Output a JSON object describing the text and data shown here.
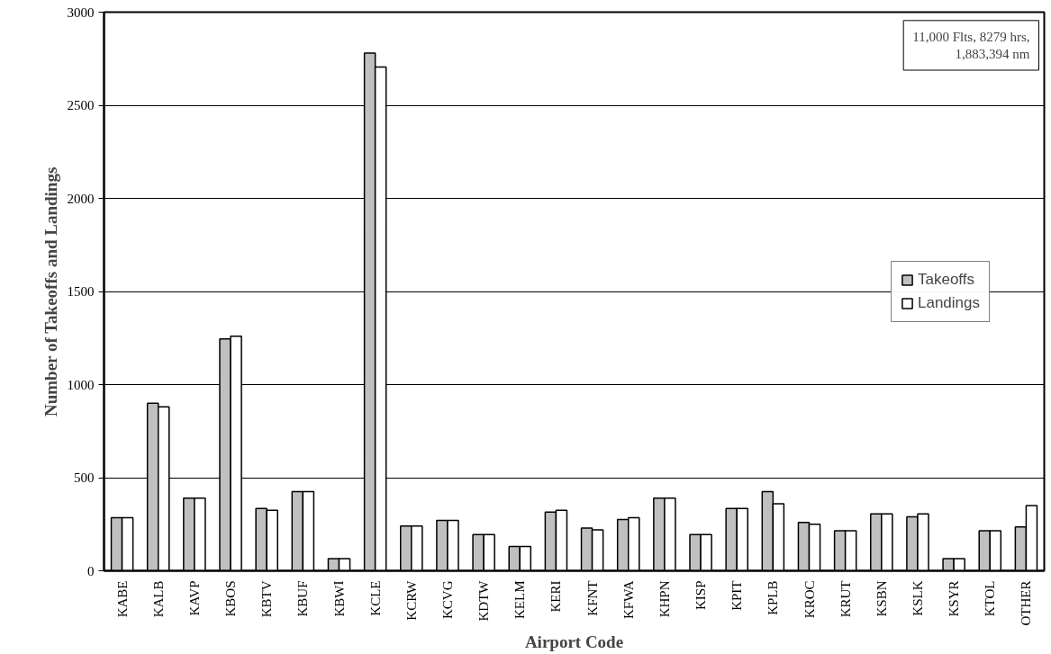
{
  "chart_data": {
    "type": "bar",
    "xlabel": "Airport Code",
    "ylabel": "Number of Takeoffs and Landings",
    "categories": [
      "KABE",
      "KALB",
      "KAVP",
      "KBOS",
      "KBTV",
      "KBUF",
      "KBWI",
      "KCLE",
      "KCRW",
      "KCVG",
      "KDTW",
      "KELM",
      "KERI",
      "KFNT",
      "KFWA",
      "KHPN",
      "KISP",
      "KPIT",
      "KPLB",
      "KROC",
      "KRUT",
      "KSBN",
      "KSLK",
      "KSYR",
      "KTOL",
      "OTHER"
    ],
    "series": [
      {
        "name": "Takeoffs",
        "color": "#c0c0c0",
        "values": [
          285,
          900,
          390,
          1245,
          335,
          425,
          65,
          2780,
          240,
          270,
          195,
          130,
          315,
          230,
          275,
          390,
          195,
          335,
          425,
          260,
          215,
          305,
          290,
          65,
          215,
          235
        ]
      },
      {
        "name": "Landings",
        "color": "#ffffff",
        "values": [
          285,
          880,
          390,
          1260,
          325,
          425,
          65,
          2705,
          240,
          270,
          195,
          130,
          325,
          220,
          285,
          390,
          195,
          335,
          360,
          250,
          215,
          305,
          305,
          65,
          215,
          350
        ]
      }
    ],
    "ylim": [
      0,
      3000
    ],
    "yticks": [
      0,
      500,
      1000,
      1500,
      2000,
      2500,
      3000
    ],
    "grid": "y",
    "legend": "right",
    "annotations": [
      "11,000 Flts, 8279 hrs,\n1,883,394 nm"
    ]
  }
}
